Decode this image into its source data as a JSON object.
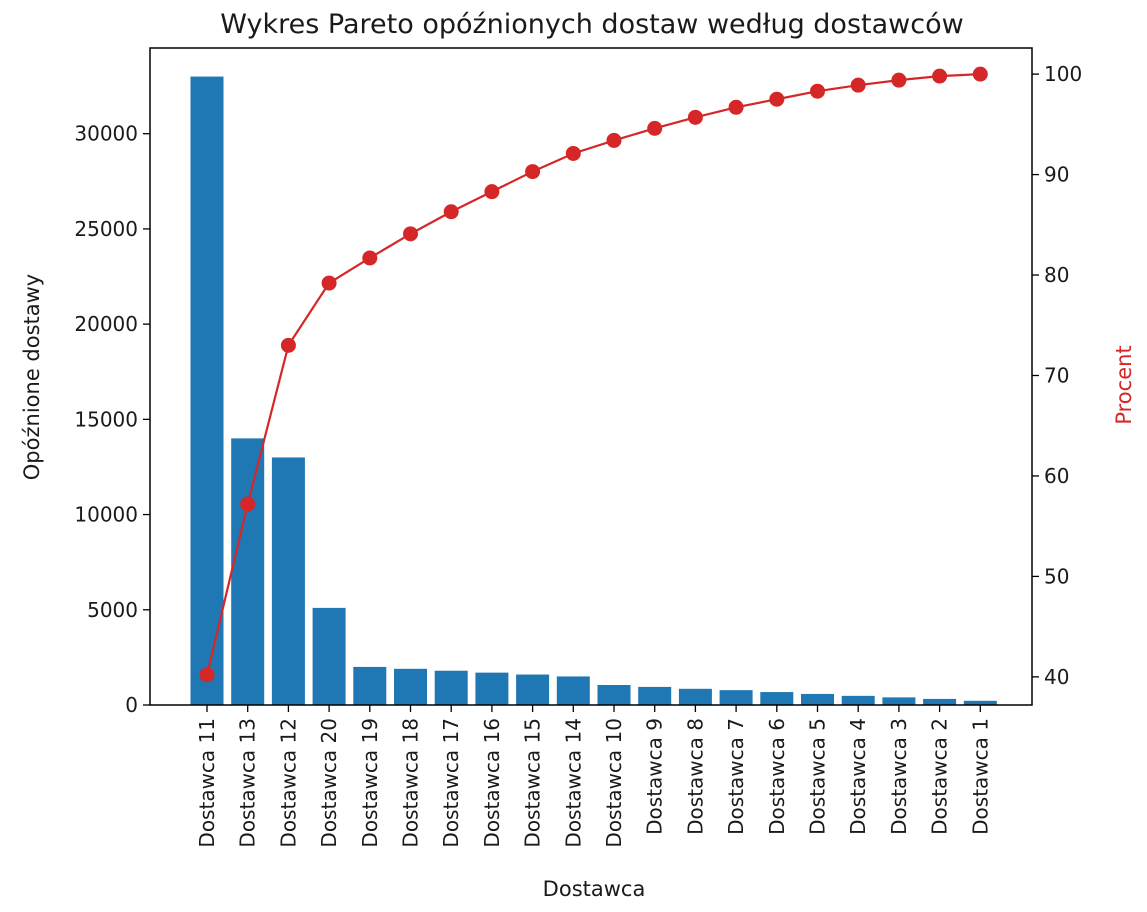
{
  "chart_data": {
    "type": "bar",
    "title": "Wykres Pareto opóźnionych dostaw według dostawców",
    "xlabel": "Dostawca",
    "ylabel": "Opóźnione dostawy",
    "ylabel_right": "Procent",
    "categories": [
      "Dostawca 11",
      "Dostawca 13",
      "Dostawca 12",
      "Dostawca 20",
      "Dostawca 19",
      "Dostawca 18",
      "Dostawca 17",
      "Dostawca 16",
      "Dostawca 15",
      "Dostawca 14",
      "Dostawca 10",
      "Dostawca 9",
      "Dostawca 8",
      "Dostawca 7",
      "Dostawca 6",
      "Dostawca 5",
      "Dostawca 4",
      "Dostawca 3",
      "Dostawca 2",
      "Dostawca 1"
    ],
    "ylim": [
      0,
      34500
    ],
    "yticks": [
      0,
      5000,
      10000,
      15000,
      20000,
      25000,
      30000
    ],
    "ylim_right": [
      37.2,
      102.6
    ],
    "yticks_right": [
      40,
      50,
      60,
      70,
      80,
      90,
      100
    ],
    "series": [
      {
        "type": "bar",
        "color": "#1f77b4",
        "values": [
          33000,
          14000,
          13000,
          5100,
          2000,
          1900,
          1800,
          1700,
          1600,
          1500,
          1050,
          950,
          850,
          780,
          680,
          580,
          480,
          400,
          320,
          220
        ]
      },
      {
        "type": "line",
        "axis": "right",
        "color": "#d62728",
        "values": [
          40.2,
          57.2,
          73.0,
          79.2,
          81.7,
          84.1,
          86.3,
          88.3,
          90.3,
          92.1,
          93.4,
          94.6,
          95.7,
          96.7,
          97.5,
          98.3,
          98.9,
          99.4,
          99.8,
          100.0
        ]
      }
    ],
    "grid": false,
    "legend": "none"
  }
}
